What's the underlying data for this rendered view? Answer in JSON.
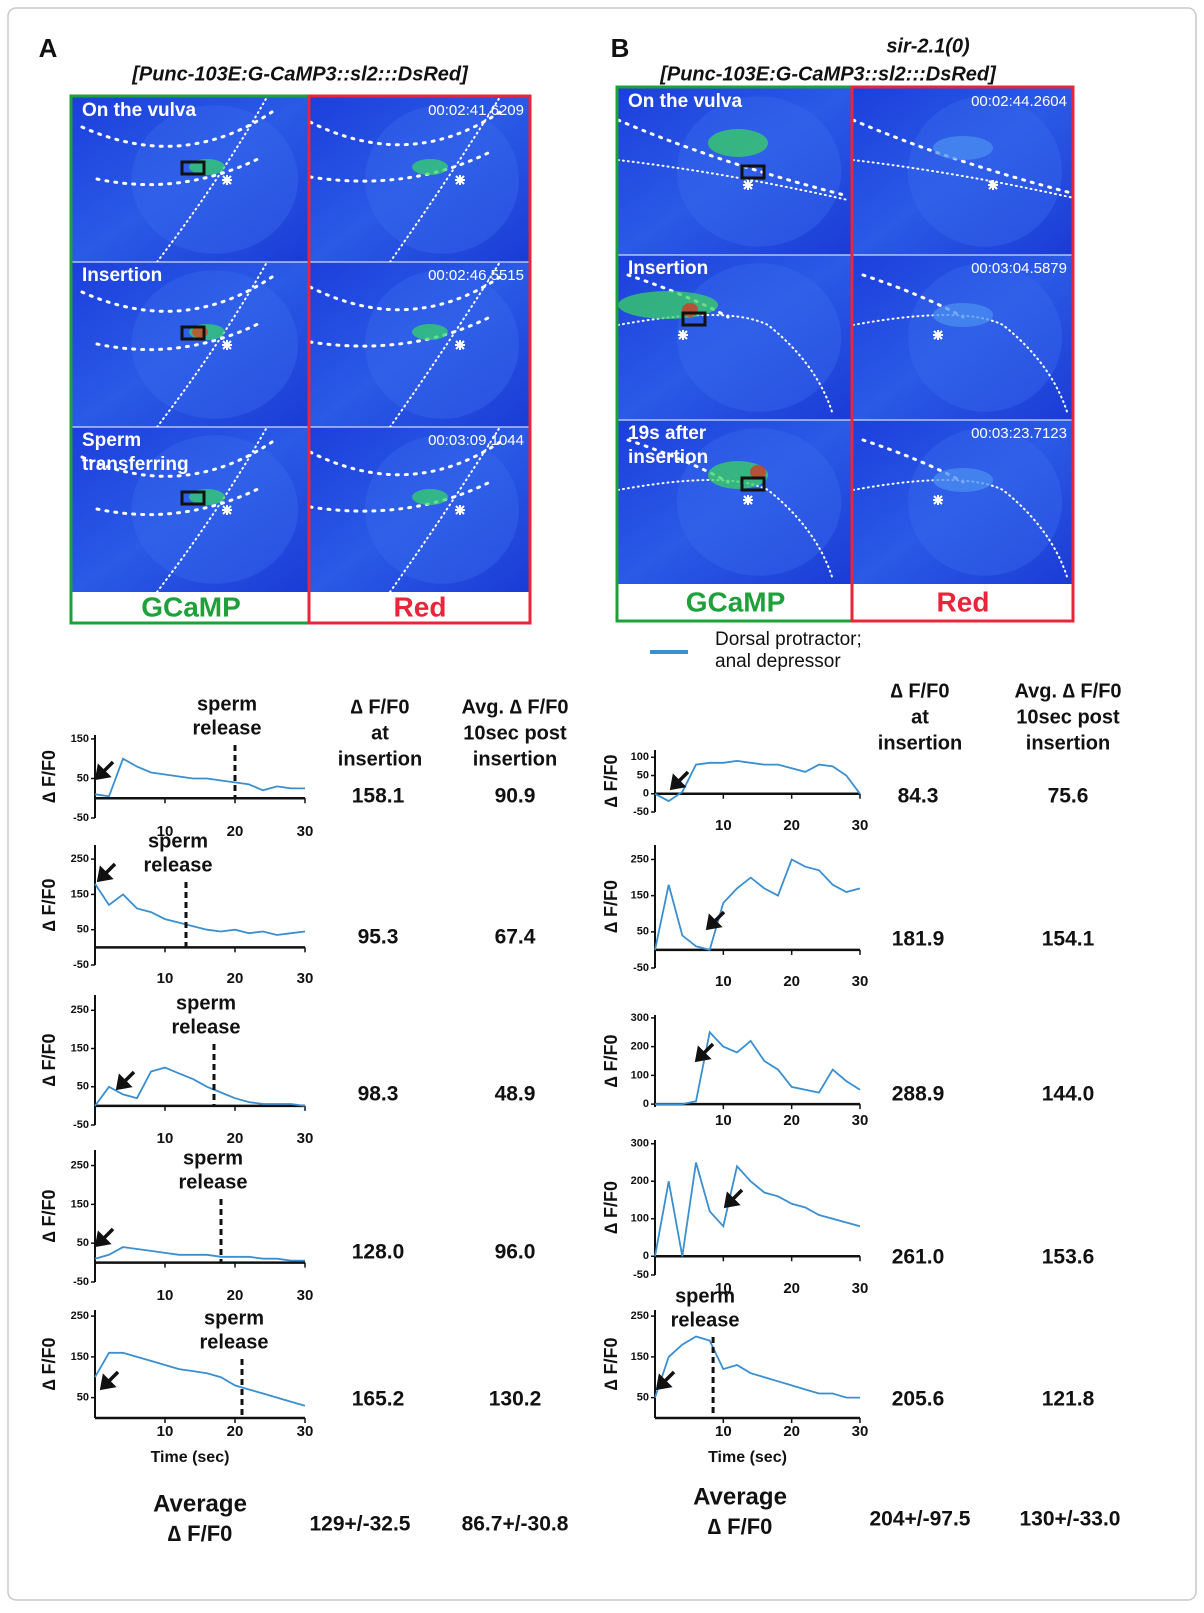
{
  "figure": {
    "legend": {
      "name": [
        "Dorsal protractor;",
        "anal depressor"
      ],
      "color": "#3a8fd0"
    },
    "panels": [
      {
        "letter": "A",
        "construct": "[Punc-103E:G-CaMP3::sl2:::DsRed]",
        "images": {
          "channels": [
            "GCaMP",
            "Red"
          ],
          "rows": [
            {
              "label": [
                "On the vulva"
              ],
              "timestamp": "00:02:41.6209"
            },
            {
              "label": [
                "Insertion"
              ],
              "timestamp": "00:02:46.5515"
            },
            {
              "label": [
                "Sperm",
                "transferring"
              ],
              "timestamp": "00:03:09.1044"
            }
          ]
        },
        "columns": [
          [
            "∆ F/F0",
            "at",
            "insertion"
          ],
          [
            "Avg. ∆ F/F0",
            "10sec post",
            "insertion"
          ]
        ],
        "y_label": "∆ F/F0",
        "x_label": "Time (sec)",
        "traces": [
          {
            "xlim": [
              0,
              30
            ],
            "xticks": [
              10,
              20,
              30
            ],
            "ylim": [
              -50,
              160
            ],
            "yticks": [
              -50,
              50,
              150
            ],
            "x": [
              0,
              2,
              4,
              6,
              8,
              10,
              12,
              14,
              16,
              18,
              20,
              22,
              24,
              26,
              28,
              30
            ],
            "values": [
              10,
              5,
              100,
              80,
              65,
              60,
              55,
              50,
              50,
              45,
              40,
              35,
              20,
              30,
              25,
              25
            ],
            "sperm_release": {
              "x": 20,
              "label": [
                "sperm",
                "release"
              ]
            },
            "at_insertion": "158.1",
            "avg_post": "90.9"
          },
          {
            "xlim": [
              0,
              30
            ],
            "xticks": [
              10,
              20,
              30
            ],
            "ylim": [
              -50,
              290
            ],
            "yticks": [
              -50,
              50,
              150,
              250
            ],
            "x": [
              0,
              2,
              4,
              6,
              8,
              10,
              12,
              14,
              16,
              18,
              20,
              22,
              24,
              26,
              28,
              30
            ],
            "values": [
              180,
              120,
              150,
              110,
              100,
              80,
              70,
              60,
              50,
              45,
              50,
              40,
              45,
              35,
              40,
              45
            ],
            "sperm_release": {
              "x": 13,
              "label": [
                "sperm",
                "release"
              ]
            },
            "at_insertion": "95.3",
            "avg_post": "67.4"
          },
          {
            "xlim": [
              0,
              30
            ],
            "xticks": [
              10,
              20,
              30
            ],
            "ylim": [
              -50,
              290
            ],
            "yticks": [
              -50,
              50,
              150,
              250
            ],
            "x": [
              0,
              2,
              4,
              6,
              8,
              10,
              12,
              14,
              16,
              18,
              20,
              22,
              24,
              26,
              28,
              30
            ],
            "values": [
              0,
              50,
              30,
              20,
              90,
              100,
              85,
              70,
              50,
              35,
              20,
              10,
              5,
              5,
              5,
              0
            ],
            "sperm_release": {
              "x": 17,
              "label": [
                "sperm",
                "release"
              ]
            },
            "at_insertion": "98.3",
            "avg_post": "48.9"
          },
          {
            "xlim": [
              0,
              30
            ],
            "xticks": [
              10,
              20,
              30
            ],
            "ylim": [
              -50,
              290
            ],
            "yticks": [
              -50,
              50,
              150,
              250
            ],
            "x": [
              0,
              2,
              4,
              6,
              8,
              10,
              12,
              14,
              16,
              18,
              20,
              22,
              24,
              26,
              28,
              30
            ],
            "values": [
              10,
              20,
              40,
              35,
              30,
              25,
              20,
              20,
              20,
              15,
              15,
              15,
              10,
              10,
              5,
              5
            ],
            "sperm_release": {
              "x": 18,
              "label": [
                "sperm",
                "release"
              ]
            },
            "at_insertion": "128.0",
            "avg_post": "96.0"
          },
          {
            "xlim": [
              0,
              30
            ],
            "xticks": [
              10,
              20,
              30
            ],
            "ylim": [
              0,
              265
            ],
            "yticks": [
              50,
              150,
              250
            ],
            "x": [
              0,
              2,
              4,
              6,
              8,
              10,
              12,
              14,
              16,
              18,
              20,
              22,
              24,
              26,
              28,
              30
            ],
            "values": [
              100,
              160,
              160,
              150,
              140,
              130,
              120,
              115,
              110,
              100,
              80,
              70,
              60,
              50,
              40,
              30
            ],
            "sperm_release": {
              "x": 21,
              "label": [
                "sperm",
                "release"
              ]
            },
            "at_insertion": "165.2",
            "avg_post": "130.2"
          }
        ],
        "average": {
          "label": [
            "Average",
            "∆ F/F0"
          ],
          "at_insertion": "129+/-32.5",
          "avg_post": "86.7+/-30.8"
        }
      },
      {
        "letter": "B",
        "genotype": "sir-2.1(0)",
        "construct": "[Punc-103E:G-CaMP3::sl2:::DsRed]",
        "images": {
          "channels": [
            "GCaMP",
            "Red"
          ],
          "rows": [
            {
              "label": [
                "On the vulva"
              ],
              "timestamp": "00:02:44.2604"
            },
            {
              "label": [
                "Insertion"
              ],
              "timestamp": "00:03:04.5879"
            },
            {
              "label": [
                "19s after",
                "insertion"
              ],
              "timestamp": "00:03:23.7123"
            }
          ]
        },
        "columns": [
          [
            "∆ F/F0",
            "at",
            "insertion"
          ],
          [
            "Avg. ∆ F/F0",
            "10sec post",
            "insertion"
          ]
        ],
        "y_label": "∆ F/F0",
        "x_label": "Time (sec)",
        "traces": [
          {
            "xlim": [
              0,
              30
            ],
            "xticks": [
              10,
              20,
              30
            ],
            "ylim": [
              -50,
              120
            ],
            "yticks": [
              -50,
              0,
              50,
              100
            ],
            "x": [
              0,
              2,
              4,
              6,
              8,
              10,
              12,
              14,
              16,
              18,
              20,
              22,
              24,
              26,
              28,
              30
            ],
            "values": [
              0,
              -20,
              5,
              80,
              85,
              85,
              90,
              85,
              80,
              80,
              70,
              60,
              80,
              75,
              50,
              0
            ],
            "at_insertion": "84.3",
            "avg_post": "75.6"
          },
          {
            "xlim": [
              0,
              30
            ],
            "xticks": [
              10,
              20,
              30
            ],
            "ylim": [
              -50,
              290
            ],
            "yticks": [
              -50,
              50,
              150,
              250
            ],
            "x": [
              0,
              2,
              4,
              6,
              8,
              10,
              12,
              14,
              16,
              18,
              20,
              22,
              24,
              26,
              28,
              30
            ],
            "values": [
              0,
              180,
              40,
              10,
              0,
              130,
              170,
              200,
              170,
              150,
              250,
              230,
              220,
              180,
              160,
              170
            ],
            "at_insertion": "181.9",
            "avg_post": "154.1"
          },
          {
            "xlim": [
              0,
              30
            ],
            "xticks": [
              10,
              20,
              30
            ],
            "ylim": [
              -10,
              310
            ],
            "yticks": [
              0,
              100,
              200,
              300
            ],
            "x": [
              0,
              2,
              4,
              6,
              8,
              10,
              12,
              14,
              16,
              18,
              20,
              22,
              24,
              26,
              28,
              30
            ],
            "values": [
              0,
              0,
              0,
              10,
              250,
              200,
              180,
              220,
              150,
              120,
              60,
              50,
              40,
              120,
              80,
              50
            ],
            "at_insertion": "288.9",
            "avg_post": "144.0"
          },
          {
            "xlim": [
              0,
              30
            ],
            "xticks": [
              10,
              20,
              30
            ],
            "ylim": [
              -50,
              310
            ],
            "yticks": [
              -50,
              0,
              100,
              200,
              300
            ],
            "x": [
              0,
              2,
              4,
              6,
              8,
              10,
              12,
              14,
              16,
              18,
              20,
              22,
              24,
              26,
              28,
              30
            ],
            "values": [
              0,
              200,
              0,
              250,
              120,
              80,
              240,
              200,
              170,
              160,
              140,
              130,
              110,
              100,
              90,
              80
            ],
            "at_insertion": "261.0",
            "avg_post": "153.6"
          },
          {
            "xlim": [
              0,
              30
            ],
            "xticks": [
              10,
              20,
              30
            ],
            "ylim": [
              0,
              265
            ],
            "yticks": [
              50,
              150,
              250
            ],
            "x": [
              0,
              2,
              4,
              6,
              8,
              10,
              12,
              14,
              16,
              18,
              20,
              22,
              24,
              26,
              28,
              30
            ],
            "values": [
              50,
              150,
              180,
              200,
              190,
              120,
              130,
              110,
              100,
              90,
              80,
              70,
              60,
              60,
              50,
              50
            ],
            "sperm_release": {
              "x": 8.5,
              "label": [
                "sperm",
                "release"
              ]
            },
            "at_insertion": "205.6",
            "avg_post": "121.8"
          }
        ],
        "average": {
          "label": [
            "Average",
            "∆ F/F0"
          ],
          "at_insertion": "204+/-97.5",
          "avg_post": "130+/-33.0"
        }
      }
    ]
  }
}
